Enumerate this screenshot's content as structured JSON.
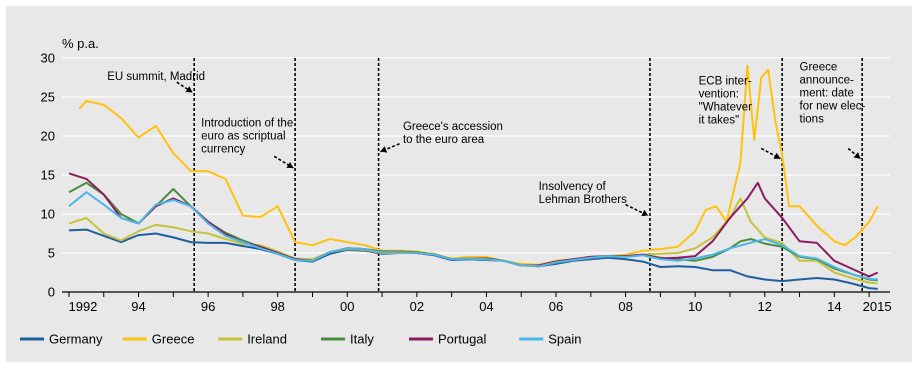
{
  "chart_data": {
    "type": "line",
    "unit_label": "% p.a.",
    "ylim": [
      0,
      30
    ],
    "yticks": [
      0,
      5,
      10,
      15,
      20,
      25,
      30
    ],
    "xlim": [
      1991.8,
      2015.6
    ],
    "xticks": [
      {
        "x": 1992,
        "label": "1992"
      },
      {
        "x": 1994,
        "label": "94"
      },
      {
        "x": 1996,
        "label": "96"
      },
      {
        "x": 1998,
        "label": "98"
      },
      {
        "x": 2000,
        "label": "00"
      },
      {
        "x": 2002,
        "label": "02"
      },
      {
        "x": 2004,
        "label": "04"
      },
      {
        "x": 2006,
        "label": "06"
      },
      {
        "x": 2008,
        "label": "08"
      },
      {
        "x": 2010,
        "label": "10"
      },
      {
        "x": 2012,
        "label": "12"
      },
      {
        "x": 2014,
        "label": "14"
      },
      {
        "x": 2015,
        "label": "2015"
      }
    ],
    "grid": "horizontal",
    "legend_position": "bottom",
    "event_lines": [
      1995.6,
      1998.5,
      2000.9,
      2008.7,
      2012.5,
      2014.8
    ],
    "annotations": [
      {
        "lines": [
          "EU summit, Madrid"
        ],
        "x": 1993.1,
        "y": 27.2,
        "arrow_from": [
          1995.1,
          26.9
        ],
        "arrow_to": [
          1995.55,
          25.6
        ]
      },
      {
        "lines": [
          "Introduction of the",
          "euro as scriptual",
          "currency"
        ],
        "x": 1995.8,
        "y": 21.2,
        "arrow_from": [
          1997.9,
          17.4
        ],
        "arrow_to": [
          1998.45,
          15.9
        ]
      },
      {
        "lines": [
          "Greece's accession",
          "to the euro area"
        ],
        "x": 2001.6,
        "y": 20.8,
        "arrow_from": [
          2001.5,
          19.0
        ],
        "arrow_to": [
          2000.95,
          18.0
        ]
      },
      {
        "lines": [
          "Insolvency of",
          "Lehman Brothers"
        ],
        "x": 2005.5,
        "y": 13.1,
        "arrow_from": [
          2008.0,
          11.2
        ],
        "arrow_to": [
          2008.65,
          9.8
        ]
      },
      {
        "lines": [
          "ECB inter-",
          "vention:",
          "\"Whatever",
          "it takes\""
        ],
        "x": 2010.1,
        "y": 26.6,
        "arrow_from": [
          2011.9,
          18.4
        ],
        "arrow_to": [
          2012.45,
          17.1
        ]
      },
      {
        "lines": [
          "Greece",
          "announce-",
          "ment: date",
          "for new elec-",
          "tions"
        ],
        "x": 2013.0,
        "y": 28.4,
        "arrow_from": [
          2014.4,
          18.4
        ],
        "arrow_to": [
          2014.75,
          17.1
        ]
      }
    ],
    "series": [
      {
        "name": "Germany",
        "color": "#1f5fa1",
        "x": [
          1992,
          1992.5,
          1993,
          1993.5,
          1994,
          1994.5,
          1995,
          1995.5,
          1996,
          1996.5,
          1997,
          1997.5,
          1998,
          1998.5,
          1999,
          1999.5,
          2000,
          2000.5,
          2001,
          2001.5,
          2002,
          2002.5,
          2003,
          2003.5,
          2004,
          2004.5,
          2005,
          2005.5,
          2006,
          2006.5,
          2007,
          2007.5,
          2008,
          2008.5,
          2009,
          2009.5,
          2010,
          2010.5,
          2011,
          2011.5,
          2012,
          2012.5,
          2013,
          2013.5,
          2014,
          2014.5,
          2015,
          2015.25
        ],
        "y": [
          7.9,
          8.0,
          7.2,
          6.4,
          7.3,
          7.5,
          7.0,
          6.4,
          6.3,
          6.3,
          5.9,
          5.5,
          4.9,
          4.1,
          3.9,
          4.9,
          5.4,
          5.3,
          4.9,
          5.0,
          5.0,
          4.7,
          4.1,
          4.2,
          4.1,
          4.0,
          3.5,
          3.3,
          3.6,
          4.0,
          4.2,
          4.4,
          4.2,
          3.9,
          3.2,
          3.3,
          3.2,
          2.8,
          2.8,
          2.0,
          1.6,
          1.4,
          1.6,
          1.8,
          1.6,
          1.1,
          0.5,
          0.4
        ]
      },
      {
        "name": "Greece",
        "color": "#ffc20e",
        "x": [
          1992.3,
          1992.5,
          1993,
          1993.5,
          1994,
          1994.5,
          1995,
          1995.5,
          1996,
          1996.5,
          1997,
          1997.5,
          1998,
          1998.5,
          1999,
          1999.5,
          2000,
          2000.5,
          2001,
          2001.5,
          2002,
          2002.5,
          2003,
          2003.5,
          2004,
          2004.5,
          2005,
          2005.5,
          2006,
          2006.5,
          2007,
          2007.5,
          2008,
          2008.5,
          2009,
          2009.5,
          2010,
          2010.3,
          2010.6,
          2010.9,
          2011.1,
          2011.3,
          2011.5,
          2011.7,
          2011.9,
          2012.1,
          2012.3,
          2012.5,
          2012.7,
          2013,
          2013.5,
          2014,
          2014.3,
          2014.6,
          2015,
          2015.25
        ],
        "y": [
          23.5,
          24.5,
          24.0,
          22.3,
          19.8,
          21.3,
          17.8,
          15.5,
          15.5,
          14.5,
          9.8,
          9.6,
          11.0,
          6.4,
          6.0,
          6.8,
          6.4,
          6.0,
          5.3,
          5.3,
          5.2,
          4.8,
          4.3,
          4.5,
          4.5,
          4.0,
          3.6,
          3.5,
          4.0,
          4.2,
          4.5,
          4.6,
          4.8,
          5.3,
          5.5,
          5.8,
          7.8,
          10.5,
          11.0,
          9.0,
          12.8,
          16.5,
          29.0,
          19.5,
          27.5,
          28.5,
          22.0,
          17.5,
          11.0,
          11.0,
          8.5,
          6.5,
          6.0,
          7.0,
          9.0,
          11.0
        ]
      },
      {
        "name": "Ireland",
        "color": "#c4c43a",
        "x": [
          1992,
          1992.5,
          1993,
          1993.5,
          1994,
          1994.5,
          1995,
          1995.5,
          1996,
          1996.5,
          1997,
          1997.5,
          1998,
          1998.5,
          1999,
          1999.5,
          2000,
          2000.5,
          2001,
          2001.5,
          2002,
          2002.5,
          2003,
          2003.5,
          2004,
          2004.5,
          2005,
          2005.5,
          2006,
          2006.5,
          2007,
          2007.5,
          2008,
          2008.5,
          2009,
          2009.5,
          2010,
          2010.5,
          2011,
          2011.3,
          2011.6,
          2012,
          2012.5,
          2013,
          2013.5,
          2014,
          2014.5,
          2015,
          2015.25
        ],
        "y": [
          8.8,
          9.5,
          7.5,
          6.6,
          7.8,
          8.6,
          8.3,
          7.8,
          7.5,
          6.8,
          6.2,
          6.0,
          5.2,
          4.3,
          4.2,
          5.1,
          5.5,
          5.4,
          5.0,
          5.0,
          5.0,
          4.9,
          4.2,
          4.3,
          4.2,
          4.0,
          3.5,
          3.3,
          3.8,
          4.1,
          4.4,
          4.6,
          4.5,
          4.8,
          4.9,
          5.0,
          5.6,
          7.0,
          9.5,
          12.0,
          9.0,
          7.0,
          6.3,
          4.0,
          4.0,
          2.5,
          1.8,
          1.2,
          1.1
        ]
      },
      {
        "name": "Italy",
        "color": "#4a8c3f",
        "x": [
          1992,
          1992.5,
          1993,
          1993.5,
          1994,
          1994.5,
          1995,
          1995.5,
          1996,
          1996.5,
          1997,
          1997.5,
          1998,
          1998.5,
          1999,
          1999.5,
          2000,
          2000.5,
          2001,
          2001.5,
          2002,
          2002.5,
          2003,
          2003.5,
          2004,
          2004.5,
          2005,
          2005.5,
          2006,
          2006.5,
          2007,
          2007.5,
          2008,
          2008.5,
          2009,
          2009.5,
          2010,
          2010.5,
          2011,
          2011.3,
          2011.6,
          2012,
          2012.5,
          2013,
          2013.5,
          2014,
          2014.5,
          2015,
          2015.25
        ],
        "y": [
          12.8,
          14.0,
          12.5,
          10.0,
          8.8,
          11.0,
          13.2,
          11.0,
          9.0,
          7.6,
          6.6,
          5.8,
          5.0,
          4.2,
          4.0,
          5.1,
          5.6,
          5.5,
          5.2,
          5.2,
          5.1,
          4.8,
          4.2,
          4.3,
          4.3,
          4.0,
          3.4,
          3.4,
          3.9,
          4.2,
          4.5,
          4.6,
          4.6,
          4.8,
          4.4,
          4.2,
          4.0,
          4.5,
          5.6,
          6.5,
          6.8,
          6.2,
          5.8,
          4.5,
          4.2,
          3.0,
          2.3,
          1.6,
          1.5
        ]
      },
      {
        "name": "Portugal",
        "color": "#8b1c62",
        "x": [
          1992,
          1992.5,
          1993,
          1993.5,
          1994,
          1994.5,
          1995,
          1995.5,
          1996,
          1996.5,
          1997,
          1997.5,
          1998,
          1998.5,
          1999,
          1999.5,
          2000,
          2000.5,
          2001,
          2001.5,
          2002,
          2002.5,
          2003,
          2003.5,
          2004,
          2004.5,
          2005,
          2005.5,
          2006,
          2006.5,
          2007,
          2007.5,
          2008,
          2008.5,
          2009,
          2009.5,
          2010,
          2010.5,
          2011,
          2011.5,
          2011.8,
          2012,
          2012.5,
          2013,
          2013.5,
          2014,
          2014.5,
          2015,
          2015.25
        ],
        "y": [
          15.2,
          14.5,
          12.5,
          9.5,
          8.8,
          11.0,
          12.0,
          11.0,
          9.0,
          7.4,
          6.4,
          5.8,
          5.0,
          4.2,
          4.0,
          5.1,
          5.6,
          5.5,
          5.1,
          5.1,
          5.0,
          4.8,
          4.2,
          4.3,
          4.3,
          4.0,
          3.4,
          3.4,
          3.9,
          4.2,
          4.5,
          4.6,
          4.6,
          4.8,
          4.3,
          4.4,
          4.6,
          6.5,
          9.5,
          12.0,
          14.0,
          12.0,
          9.5,
          6.5,
          6.3,
          4.0,
          3.0,
          2.0,
          2.5
        ]
      },
      {
        "name": "Spain",
        "color": "#4db6e8",
        "x": [
          1992,
          1992.5,
          1993,
          1993.5,
          1994,
          1994.5,
          1995,
          1995.5,
          1996,
          1996.5,
          1997,
          1997.5,
          1998,
          1998.5,
          1999,
          1999.5,
          2000,
          2000.5,
          2001,
          2001.5,
          2002,
          2002.5,
          2003,
          2003.5,
          2004,
          2004.5,
          2005,
          2005.5,
          2006,
          2006.5,
          2007,
          2007.5,
          2008,
          2008.5,
          2009,
          2009.5,
          2010,
          2010.5,
          2011,
          2011.5,
          2012,
          2012.5,
          2013,
          2013.5,
          2014,
          2014.5,
          2015,
          2015.25
        ],
        "y": [
          11.0,
          12.8,
          11.2,
          9.5,
          8.8,
          11.2,
          11.8,
          11.0,
          8.8,
          7.2,
          6.4,
          5.6,
          4.9,
          4.1,
          4.0,
          5.1,
          5.6,
          5.5,
          5.1,
          5.1,
          5.0,
          4.8,
          4.2,
          4.3,
          4.2,
          4.0,
          3.4,
          3.3,
          3.8,
          4.1,
          4.4,
          4.6,
          4.5,
          4.7,
          4.2,
          4.0,
          4.3,
          4.8,
          5.6,
          6.2,
          6.8,
          6.0,
          4.6,
          4.3,
          3.2,
          2.3,
          1.7,
          1.6
        ]
      }
    ]
  }
}
